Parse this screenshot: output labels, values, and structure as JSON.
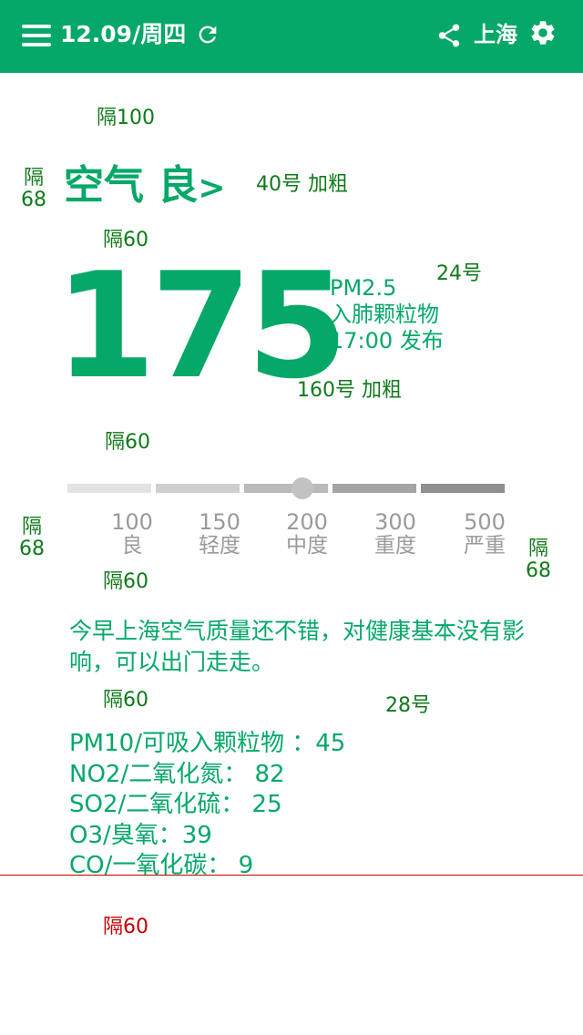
{
  "header": {
    "date": "12.09/周四",
    "city": "上海",
    "icons": [
      "menu-icon",
      "refresh-icon",
      "share-icon",
      "gear-icon"
    ]
  },
  "aq": {
    "title": "空气 良",
    "chevron": ">",
    "value": "175",
    "pm_label": "PM2.5",
    "pm_desc": "入肺颗粒物",
    "time": "17:00 发布"
  },
  "scale": {
    "current_value": 175,
    "ticks": [
      {
        "value": "100",
        "label": "良"
      },
      {
        "value": "150",
        "label": "轻度"
      },
      {
        "value": "200",
        "label": "中度"
      },
      {
        "value": "300",
        "label": "重度"
      },
      {
        "value": "500",
        "label": "严重"
      }
    ],
    "segment_colors": [
      "#e3e3e3",
      "#cfcfcf",
      "#bababa",
      "#a4a4a4",
      "#8e8e8e"
    ]
  },
  "description": "今早上海空气质量还不错，对健康基本没有影响，可以出门走走。",
  "pollutants": [
    "PM10/可吸入颗粒物 ：45",
    "NO2/二氧化氮：  82",
    "SO2/二氧化硫：   25",
    "O3/臭氧：39",
    "CO/一氧化碳：  9"
  ],
  "annotations": {
    "gap100": "隔100",
    "gap60": "隔60",
    "gap68_a": "隔",
    "gap68_b": "68",
    "font40": "40号 加粗",
    "font24": "24号",
    "font160": "160号 加粗",
    "font28": "28号"
  },
  "colors": {
    "accent": "#05a868",
    "annotation": "#107a1a",
    "annotation_red": "#c40000"
  }
}
